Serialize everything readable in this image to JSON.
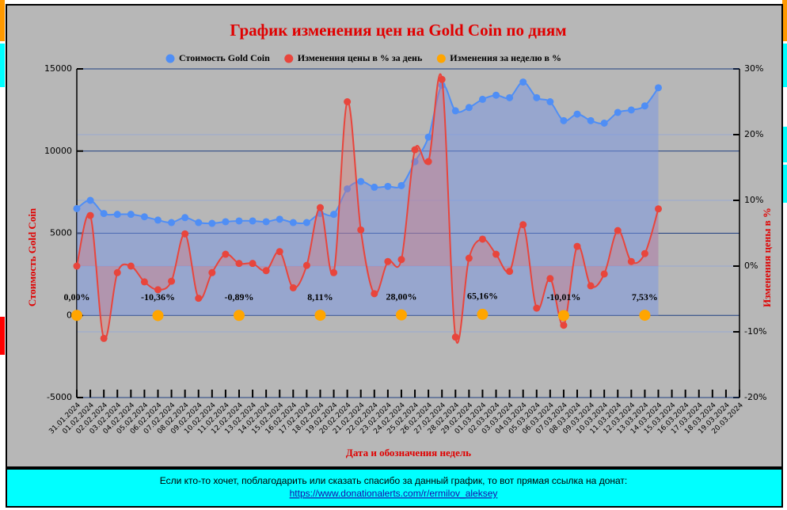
{
  "chart_data": {
    "type": "line",
    "title": "График изменения цен на Gold Coin по дням",
    "y_label": "Стоимость Gold Coin",
    "y2_label": "Изменения цены в %",
    "x_label": "Дата и обозначения недель",
    "categories": [
      "31.01.2024",
      "01.02.2024",
      "02.02.2024",
      "03.02.2024",
      "04.02.2024",
      "05.02.2024",
      "06.02.2024",
      "07.02.2024",
      "08.02.2024",
      "09.02.2024",
      "10.02.2024",
      "11.02.2024",
      "12.02.2024",
      "13.02.2024",
      "14.02.2024",
      "15.02.2024",
      "16.02.2024",
      "17.02.2024",
      "18.02.2024",
      "19.02.2024",
      "20.02.2024",
      "21.02.2024",
      "22.02.2024",
      "23.02.2024",
      "24.02.2024",
      "25.02.2024",
      "26.02.2024",
      "27.02.2024",
      "28.02.2024",
      "29.02.2024",
      "01.03.2024",
      "02.03.2024",
      "03.03.2024",
      "04.03.2024",
      "05.03.2024",
      "06.03.2024",
      "07.03.2024",
      "08.03.2024",
      "09.03.2024",
      "10.03.2024",
      "11.03.2024",
      "12.03.2024",
      "13.03.2024",
      "14.03.2024",
      "15.03.2024",
      "16.03.2024",
      "17.03.2024",
      "18.03.2024",
      "19.03.2024",
      "20.03.2024"
    ],
    "series": [
      {
        "name": "Стоимость Gold Coin",
        "color": "#4f8ef5",
        "axis": "y",
        "values": [
          6500,
          7000,
          6200,
          6150,
          6150,
          6000,
          5800,
          5650,
          5950,
          5650,
          5600,
          5700,
          5750,
          5750,
          5700,
          5850,
          5650,
          5650,
          6200,
          6150,
          7700,
          8150,
          7800,
          7850,
          7900,
          9350,
          10850,
          14000,
          12450,
          12650,
          13150,
          13400,
          13250,
          14200,
          13250,
          13000,
          11850,
          12250,
          11850,
          11700,
          12350,
          12500,
          12750,
          13850,
          null,
          null,
          null,
          null,
          null,
          null
        ]
      },
      {
        "name": "Изменения цены в % за день",
        "color": "#e8453c",
        "axis": "y2",
        "values": [
          0,
          7.7,
          -11,
          -1,
          0,
          -2.4,
          -3.6,
          -2.3,
          4.9,
          -4.9,
          -1,
          1.8,
          0.4,
          0.4,
          -0.7,
          2.2,
          -3.3,
          0.1,
          8.9,
          -1,
          25,
          5.5,
          -4.2,
          0.7,
          1,
          17.7,
          15.9,
          28.4,
          -10.8,
          1.2,
          4.1,
          1.8,
          -0.8,
          6.3,
          -6.4,
          -1.9,
          -9,
          3,
          -3,
          -1.2,
          5.4,
          0.7,
          1.9,
          8.7,
          null,
          null,
          null,
          null,
          null,
          null
        ]
      },
      {
        "name": "Изменения за неделю в %",
        "color": "#ffa500",
        "axis": "y",
        "values": [
          0,
          null,
          null,
          null,
          null,
          null,
          -10.36,
          null,
          null,
          null,
          null,
          null,
          -0.89,
          null,
          null,
          null,
          null,
          null,
          8.11,
          null,
          null,
          null,
          null,
          null,
          28,
          null,
          null,
          null,
          null,
          null,
          65.16,
          null,
          null,
          null,
          null,
          null,
          -10.01,
          null,
          null,
          null,
          null,
          null,
          7.53,
          null,
          null,
          null,
          null,
          null,
          null,
          null
        ],
        "value_labels": [
          "0,00%",
          null,
          null,
          null,
          null,
          null,
          "-10,36%",
          null,
          null,
          null,
          null,
          null,
          "-0,89%",
          null,
          null,
          null,
          null,
          null,
          "8,11%",
          null,
          null,
          null,
          null,
          null,
          "28,00%",
          null,
          null,
          null,
          null,
          null,
          "65,16%",
          null,
          null,
          null,
          null,
          null,
          "-10,01%",
          null,
          null,
          null,
          null,
          null,
          "7,53%",
          null,
          null,
          null,
          null,
          null,
          null,
          null
        ]
      }
    ],
    "ylim": [
      -5000,
      15000
    ],
    "yticks": [
      -5000,
      0,
      5000,
      10000,
      15000
    ],
    "y2lim": [
      -20,
      30
    ],
    "y2ticks": [
      {
        "value": -20,
        "label": "-20%"
      },
      {
        "value": -10,
        "label": "-10%"
      },
      {
        "value": 0,
        "label": "0%"
      },
      {
        "value": 10,
        "label": "10%"
      },
      {
        "value": 20,
        "label": "20%"
      },
      {
        "value": 30,
        "label": "30%"
      }
    ],
    "grid": true,
    "legend": "top"
  },
  "footer": {
    "text": "Если кто-то хочет, поблагодарить или сказать спасибо за данный график, то вот прямая ссылка на донат:",
    "link": "https://www.donationalerts.com/r/ermilov_aleksey"
  }
}
